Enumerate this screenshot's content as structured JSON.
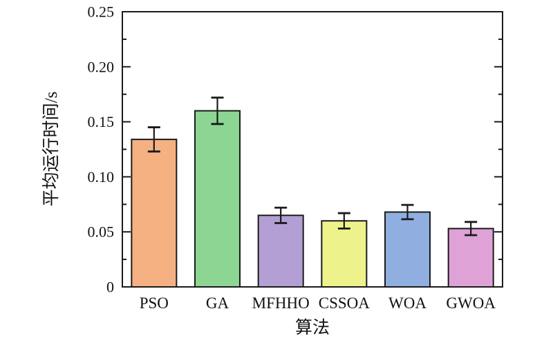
{
  "figure": {
    "background": "#ffffff",
    "axis_color": "#1a1a1a"
  },
  "chart_data": {
    "type": "bar",
    "title": "",
    "xlabel": "算法",
    "ylabel": "平均运行时间/s",
    "categories": [
      "PSO",
      "GA",
      "MFHHO",
      "CSSOA",
      "WOA",
      "GWOA"
    ],
    "values": [
      0.134,
      0.16,
      0.065,
      0.06,
      0.068,
      0.053
    ],
    "error_bars": [
      0.011,
      0.012,
      0.007,
      0.007,
      0.0065,
      0.006
    ],
    "bar_colors": [
      "#f6b183",
      "#8dd592",
      "#b49fd5",
      "#edf28b",
      "#90aee0",
      "#dfa2d7"
    ],
    "bar_edge_color": "#1a1a1a",
    "error_bar_color": "#1a1a1a",
    "ylim": [
      0,
      0.25
    ],
    "ytick_values": [
      0,
      0.05,
      0.1,
      0.15,
      0.2,
      0.25
    ],
    "ytick_labels": [
      "0",
      "0.05",
      "0.10",
      "0.15",
      "0.20",
      "0.25"
    ],
    "minor_tick_step": 0.025,
    "grid": false,
    "legend": null,
    "tick_direction": "in",
    "ticks_on_right": true
  }
}
